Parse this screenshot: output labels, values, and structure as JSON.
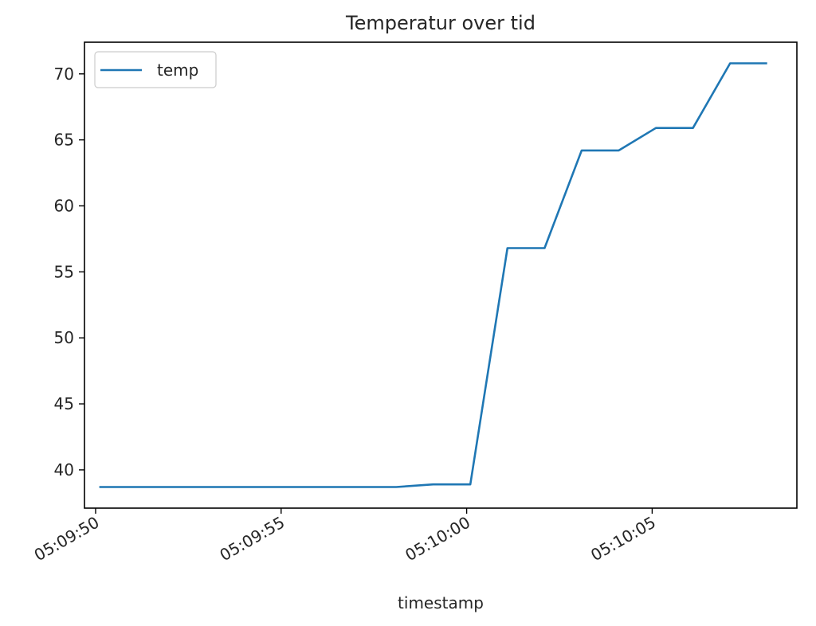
{
  "chart_data": {
    "type": "line",
    "title": "Temperatur over tid",
    "xlabel": "timestamp",
    "ylabel": "",
    "x": [
      "05:09:50.1",
      "05:09:51.1",
      "05:09:52.1",
      "05:09:53.1",
      "05:09:54.1",
      "05:09:55.1",
      "05:09:56.1",
      "05:09:57.1",
      "05:09:58.1",
      "05:09:59.1",
      "05:10:00.1",
      "05:10:01.1",
      "05:10:02.1",
      "05:10:03.1",
      "05:10:04.1",
      "05:10:05.1",
      "05:10:06.1",
      "05:10:07.1",
      "05:10:08.1"
    ],
    "series": [
      {
        "name": "temp",
        "color": "#1f77b4",
        "values": [
          38.7,
          38.7,
          38.7,
          38.7,
          38.7,
          38.7,
          38.7,
          38.7,
          38.7,
          38.9,
          38.9,
          56.8,
          56.8,
          64.2,
          64.2,
          65.9,
          65.9,
          70.8,
          70.8
        ]
      }
    ],
    "xticks": [
      "05:09:50",
      "05:09:55",
      "05:10:00",
      "05:10:05"
    ],
    "yticks": [
      40,
      45,
      50,
      55,
      60,
      65,
      70
    ],
    "ylim": [
      37.1,
      72.4
    ],
    "xlim": [
      "05:09:49.7",
      "05:10:08.9"
    ],
    "legend": "top-left",
    "grid": false
  }
}
